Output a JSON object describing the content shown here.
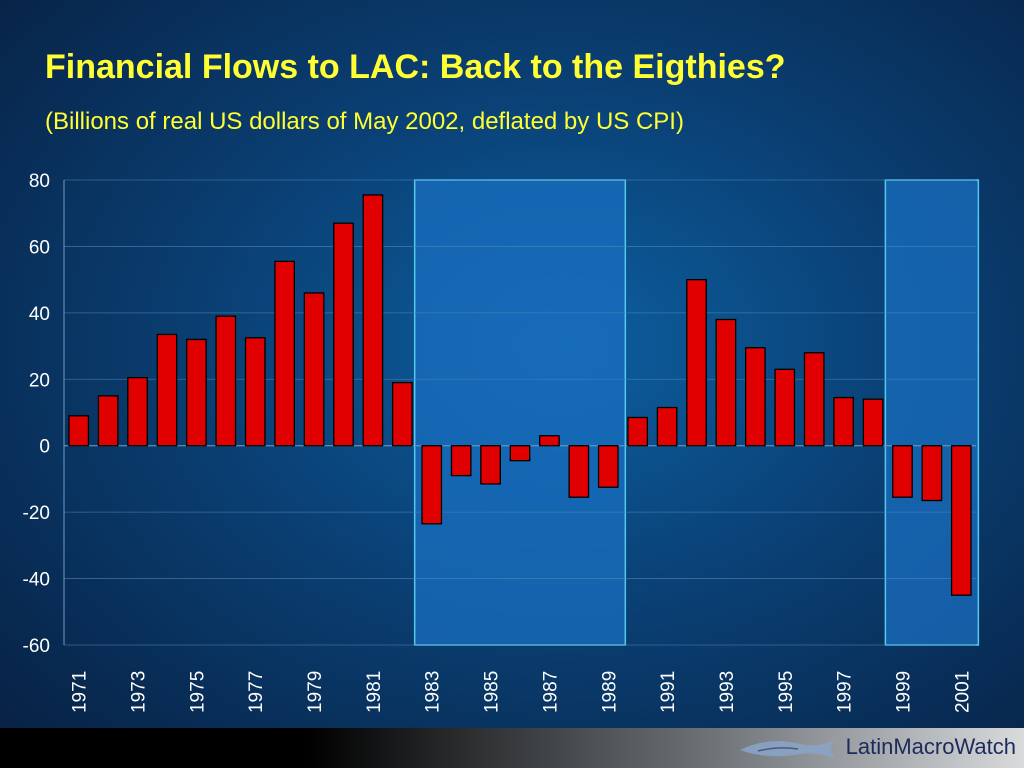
{
  "title": "Financial Flows to LAC: Back to the Eigthies?",
  "subtitle": "(Billions of real US dollars of May 2002, deflated by US CPI)",
  "logo": {
    "text": "LatinMacroWatch",
    "icon": "fish-icon"
  },
  "colors": {
    "bar": "#e10000",
    "highlight": "#1a6fc0",
    "axis_text": "#ffffff",
    "title": "#ffff33"
  },
  "chart_data": {
    "type": "bar",
    "categories": [
      "1971",
      "1972",
      "1973",
      "1974",
      "1975",
      "1976",
      "1977",
      "1978",
      "1979",
      "1980",
      "1981",
      "1982",
      "1983",
      "1984",
      "1985",
      "1986",
      "1987",
      "1988",
      "1989",
      "1990",
      "1991",
      "1992",
      "1993",
      "1994",
      "1995",
      "1996",
      "1997",
      "1998",
      "1999",
      "2000",
      "2001"
    ],
    "tick_labels": [
      "1971",
      "1973",
      "1975",
      "1977",
      "1979",
      "1981",
      "1983",
      "1985",
      "1987",
      "1989",
      "1991",
      "1993",
      "1995",
      "1997",
      "1999",
      "2001"
    ],
    "values": [
      9,
      15,
      20.5,
      33.5,
      32,
      39,
      32.5,
      55.5,
      46,
      67,
      75.5,
      19,
      -23.5,
      -9,
      -11.5,
      -4.5,
      3,
      -15.5,
      -12.5,
      8.5,
      11.5,
      50,
      38,
      29.5,
      23,
      28,
      14.5,
      14,
      -15.5,
      -16.5,
      -45
    ],
    "ylim": [
      -60,
      80
    ],
    "yticks": [
      -60,
      -40,
      -20,
      0,
      20,
      40,
      60,
      80
    ],
    "highlight_ranges": [
      [
        "1983",
        "1989"
      ],
      [
        "1999",
        "2001"
      ]
    ],
    "grid": true
  }
}
